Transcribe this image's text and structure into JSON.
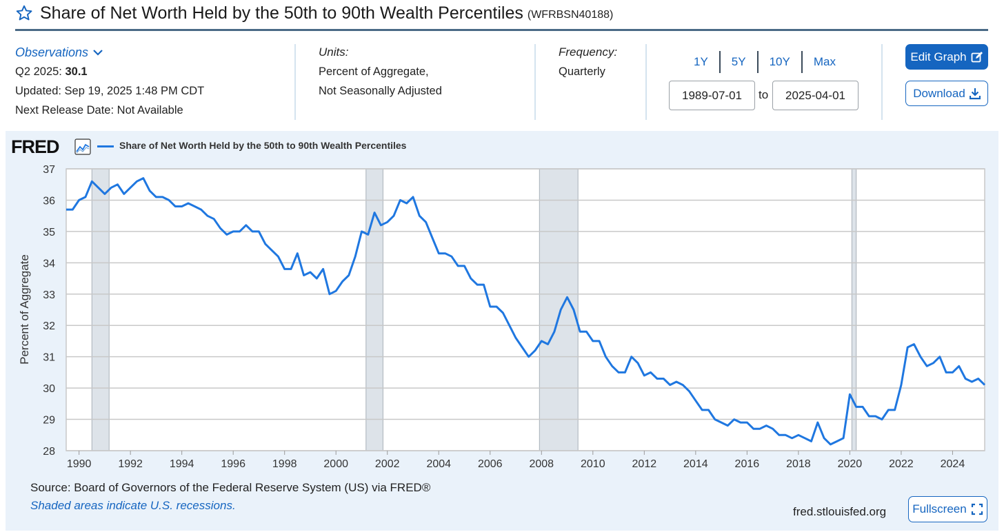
{
  "header": {
    "title": "Share of Net Worth Held by the 50th to 90th Wealth Percentiles",
    "series_id": "(WFRBSN40188)"
  },
  "observations": {
    "label": "Observations",
    "latest_label": "Q2 2025:",
    "latest_value": "30.1",
    "updated": "Updated: Sep 19, 2025 1:48 PM CDT",
    "next_release": "Next Release Date: Not Available"
  },
  "units": {
    "label": "Units:",
    "line1": "Percent of Aggregate,",
    "line2": "Not Seasonally Adjusted"
  },
  "frequency": {
    "label": "Frequency:",
    "value": "Quarterly"
  },
  "range_buttons": [
    "1Y",
    "5Y",
    "10Y",
    "Max"
  ],
  "date_range": {
    "start": "1989-07-01",
    "to": "to",
    "end": "2025-04-01"
  },
  "buttons": {
    "edit_graph": "Edit Graph",
    "download": "Download",
    "fullscreen": "Fullscreen"
  },
  "brand": {
    "logo": "FRED"
  },
  "footer": {
    "source": "Source: Board of Governors of the Federal Reserve System (US) via FRED®",
    "shaded_note": "Shaded areas indicate U.S. recessions.",
    "site": "fred.stlouisfed.org"
  },
  "colors": {
    "accent": "#1565c0",
    "series": "#1f77e0",
    "recession": "#dde3e9",
    "panel": "#eaf2fa"
  },
  "chart_data": {
    "type": "line",
    "title": "Share of Net Worth Held by the 50th to 90th Wealth Percentiles",
    "xlabel": "",
    "ylabel": "Percent of Aggregate",
    "xlim": [
      1989.5,
      2025.25
    ],
    "ylim": [
      28,
      37
    ],
    "yticks": [
      28,
      29,
      30,
      31,
      32,
      33,
      34,
      35,
      36,
      37
    ],
    "xticks": [
      1990,
      1992,
      1994,
      1996,
      1998,
      2000,
      2002,
      2004,
      2006,
      2008,
      2010,
      2012,
      2014,
      2016,
      2018,
      2020,
      2022,
      2024
    ],
    "grid": true,
    "legend": "top-left",
    "recessions": [
      [
        1990.5,
        1991.17
      ],
      [
        2001.17,
        2001.83
      ],
      [
        2007.92,
        2009.42
      ],
      [
        2020.08,
        2020.25
      ]
    ],
    "series": [
      {
        "name": "Share of Net Worth Held by the 50th to 90th Wealth Percentiles",
        "x": [
          1989.5,
          1989.75,
          1990,
          1990.25,
          1990.5,
          1990.75,
          1991,
          1991.25,
          1991.5,
          1991.75,
          1992,
          1992.25,
          1992.5,
          1992.75,
          1993,
          1993.25,
          1993.5,
          1993.75,
          1994,
          1994.25,
          1994.5,
          1994.75,
          1995,
          1995.25,
          1995.5,
          1995.75,
          1996,
          1996.25,
          1996.5,
          1996.75,
          1997,
          1997.25,
          1997.5,
          1997.75,
          1998,
          1998.25,
          1998.5,
          1998.75,
          1999,
          1999.25,
          1999.5,
          1999.75,
          2000,
          2000.25,
          2000.5,
          2000.75,
          2001,
          2001.25,
          2001.5,
          2001.75,
          2002,
          2002.25,
          2002.5,
          2002.75,
          2003,
          2003.25,
          2003.5,
          2003.75,
          2004,
          2004.25,
          2004.5,
          2004.75,
          2005,
          2005.25,
          2005.5,
          2005.75,
          2006,
          2006.25,
          2006.5,
          2006.75,
          2007,
          2007.25,
          2007.5,
          2007.75,
          2008,
          2008.25,
          2008.5,
          2008.75,
          2009,
          2009.25,
          2009.5,
          2009.75,
          2010,
          2010.25,
          2010.5,
          2010.75,
          2011,
          2011.25,
          2011.5,
          2011.75,
          2012,
          2012.25,
          2012.5,
          2012.75,
          2013,
          2013.25,
          2013.5,
          2013.75,
          2014,
          2014.25,
          2014.5,
          2014.75,
          2015,
          2015.25,
          2015.5,
          2015.75,
          2016,
          2016.25,
          2016.5,
          2016.75,
          2017,
          2017.25,
          2017.5,
          2017.75,
          2018,
          2018.25,
          2018.5,
          2018.75,
          2019,
          2019.25,
          2019.5,
          2019.75,
          2020,
          2020.25,
          2020.5,
          2020.75,
          2021,
          2021.25,
          2021.5,
          2021.75,
          2022,
          2022.25,
          2022.5,
          2022.75,
          2023,
          2023.25,
          2023.5,
          2023.75,
          2024,
          2024.25,
          2024.5,
          2024.75,
          2025,
          2025.25
        ],
        "values": [
          35.7,
          35.7,
          36.0,
          36.1,
          36.6,
          36.4,
          36.2,
          36.4,
          36.5,
          36.2,
          36.4,
          36.6,
          36.7,
          36.3,
          36.1,
          36.1,
          36.0,
          35.8,
          35.8,
          35.9,
          35.8,
          35.7,
          35.5,
          35.4,
          35.1,
          34.9,
          35.0,
          35.0,
          35.2,
          35.0,
          35.0,
          34.6,
          34.4,
          34.2,
          33.8,
          33.8,
          34.3,
          33.6,
          33.7,
          33.5,
          33.8,
          33.0,
          33.1,
          33.4,
          33.6,
          34.2,
          35.0,
          34.9,
          35.6,
          35.2,
          35.3,
          35.5,
          36.0,
          35.9,
          36.1,
          35.5,
          35.3,
          34.8,
          34.3,
          34.3,
          34.2,
          33.9,
          33.9,
          33.5,
          33.3,
          33.3,
          32.6,
          32.6,
          32.4,
          32.0,
          31.6,
          31.3,
          31.0,
          31.2,
          31.5,
          31.4,
          31.8,
          32.5,
          32.9,
          32.5,
          31.8,
          31.8,
          31.5,
          31.5,
          31.0,
          30.7,
          30.5,
          30.5,
          31.0,
          30.8,
          30.4,
          30.5,
          30.3,
          30.3,
          30.1,
          30.2,
          30.1,
          29.9,
          29.6,
          29.3,
          29.3,
          29.0,
          28.9,
          28.8,
          29.0,
          28.9,
          28.9,
          28.7,
          28.7,
          28.8,
          28.7,
          28.5,
          28.5,
          28.4,
          28.5,
          28.4,
          28.3,
          28.9,
          28.4,
          28.2,
          28.3,
          28.4,
          29.8,
          29.4,
          29.4,
          29.1,
          29.1,
          29.0,
          29.3,
          29.3,
          30.1,
          31.3,
          31.4,
          31.0,
          30.7,
          30.8,
          31.0,
          30.5,
          30.5,
          30.7,
          30.3,
          30.2,
          30.3,
          30.1
        ]
      }
    ]
  }
}
